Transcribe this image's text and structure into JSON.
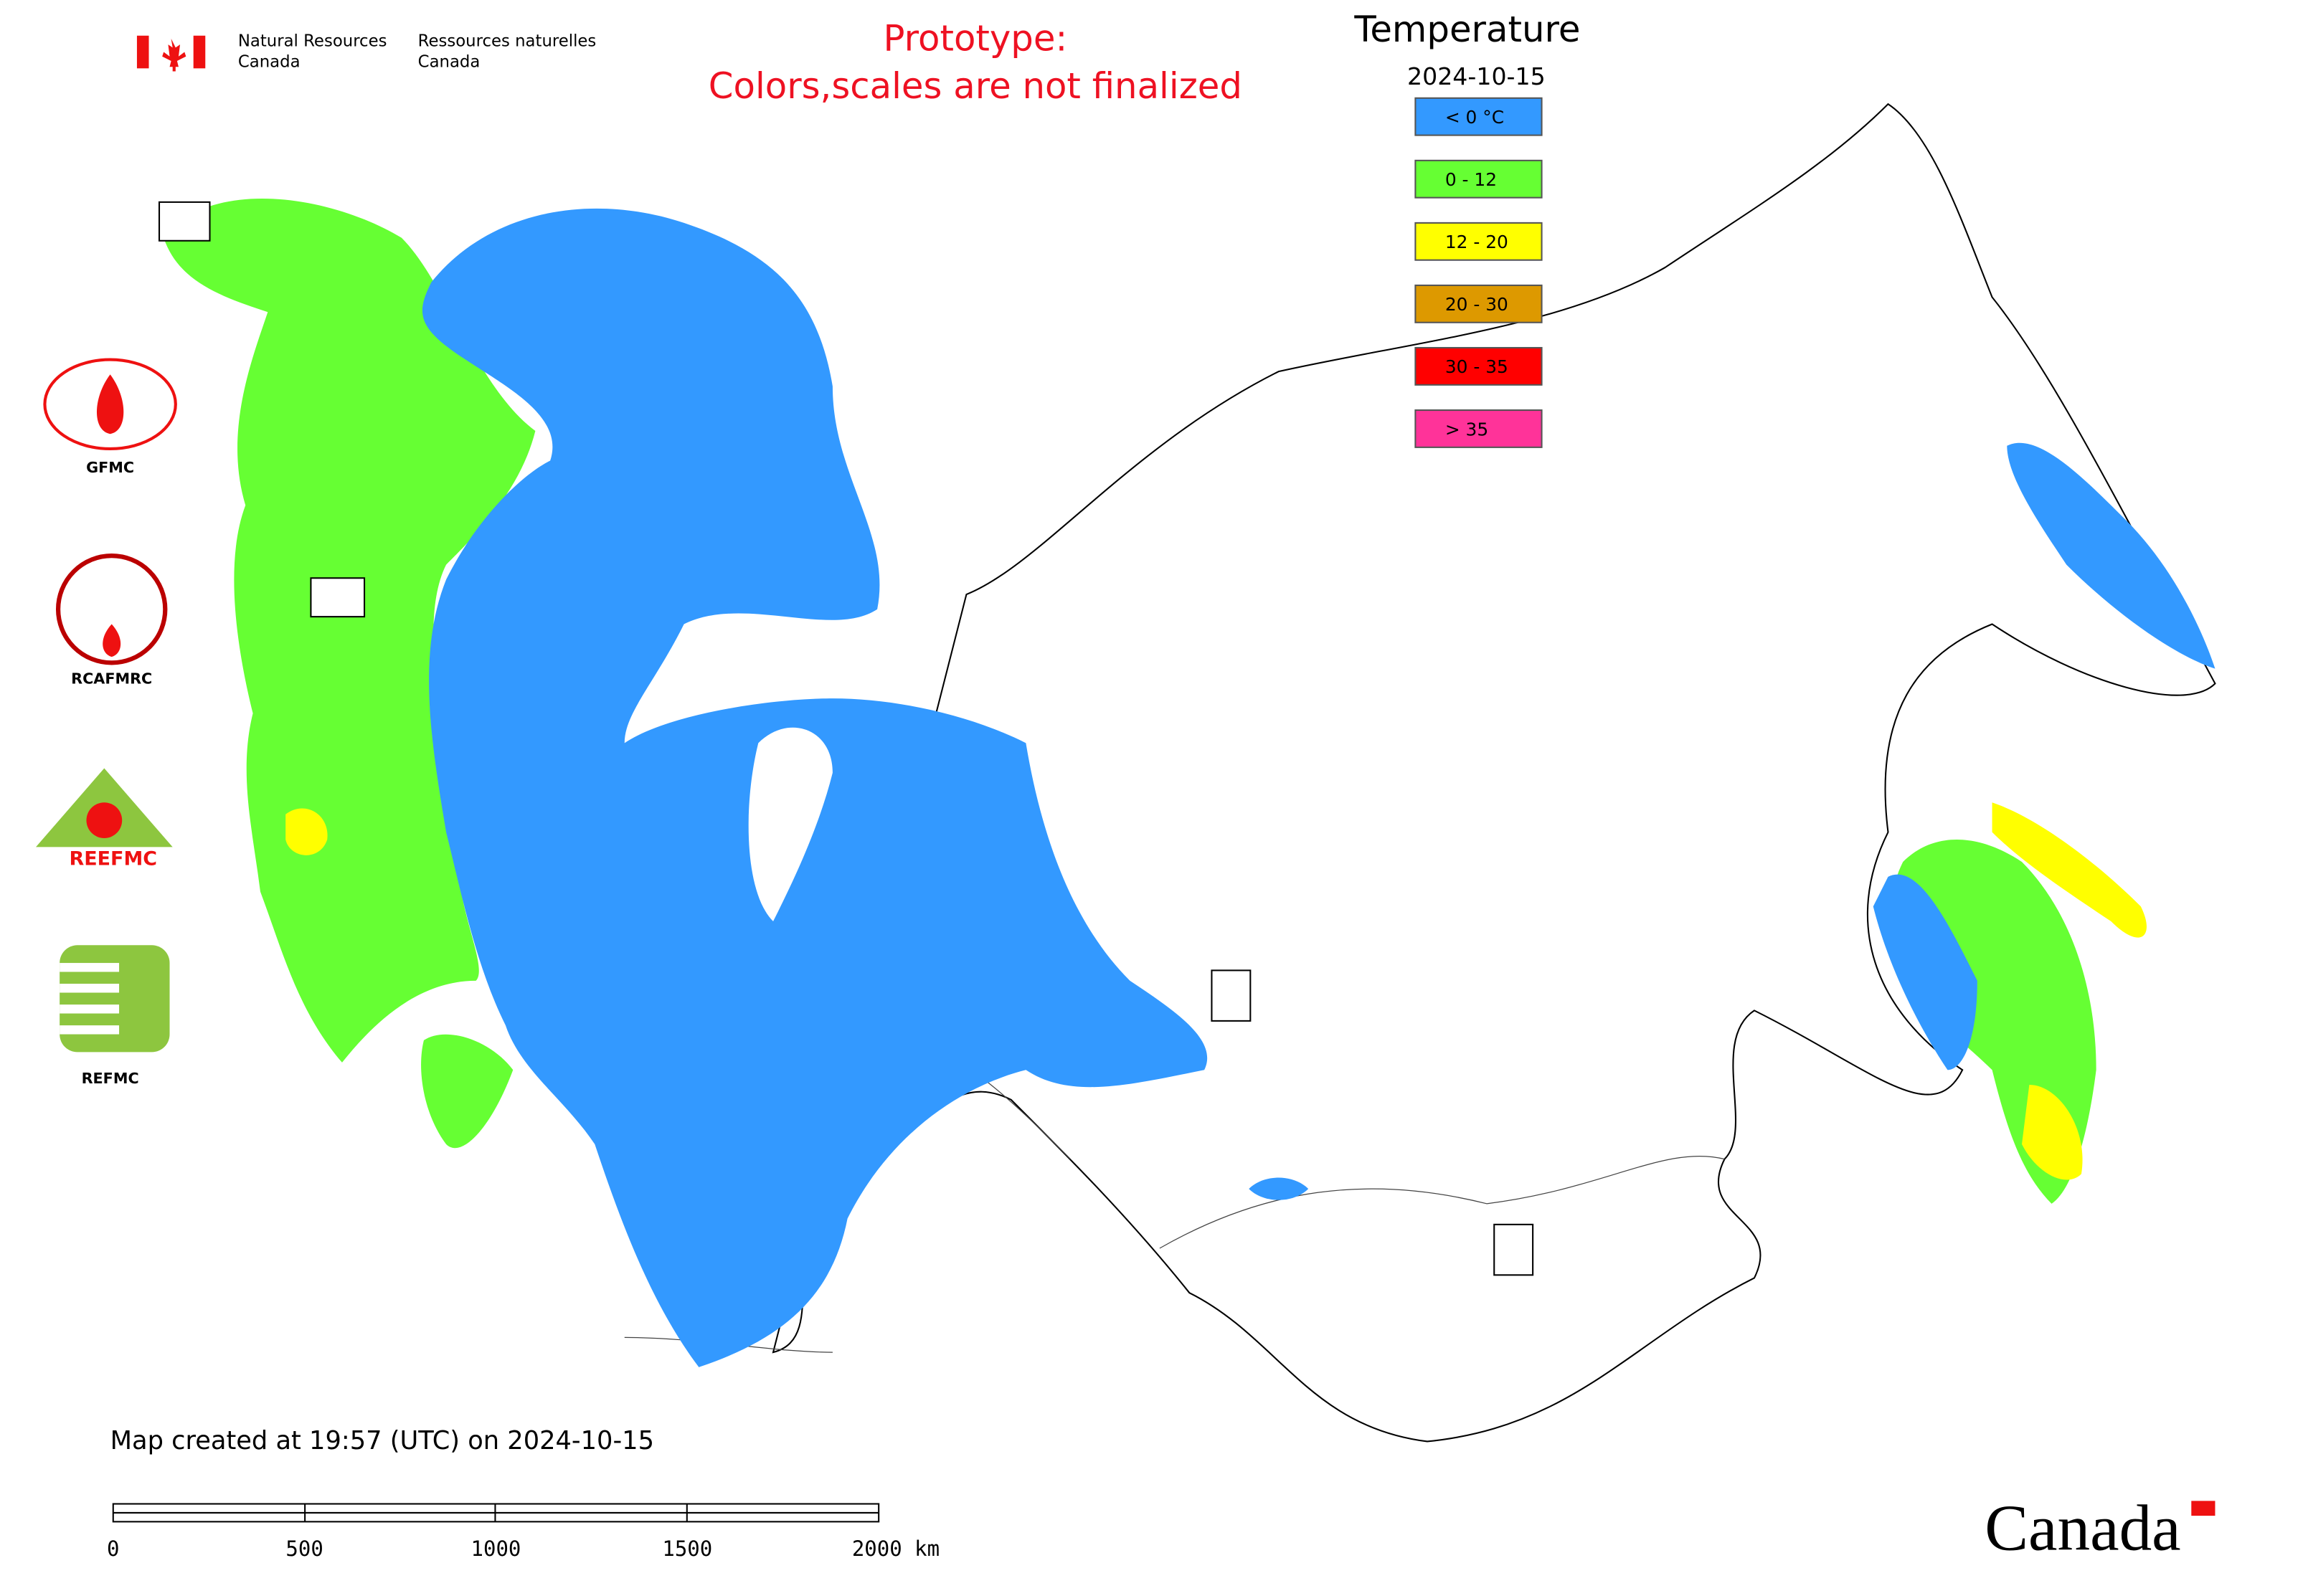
{
  "agency": {
    "en": [
      "Natural Resources",
      "Canada"
    ],
    "fr": [
      "Ressources naturelles",
      "Canada"
    ]
  },
  "notice": [
    "Prototype:",
    "Colors,scales are not finalized"
  ],
  "legend": {
    "title": "Temperature",
    "date": "2024-10-15",
    "items": [
      {
        "label": "< 0 °C",
        "color": "#3399ff"
      },
      {
        "label": "0 - 12",
        "color": "#66ff33"
      },
      {
        "label": "12 - 20",
        "color": "#ffff00"
      },
      {
        "label": "20 - 30",
        "color": "#dd9900"
      },
      {
        "label": "30 - 35",
        "color": "#ff0000"
      },
      {
        "label": "> 35",
        "color": "#ff3399"
      }
    ]
  },
  "logos": [
    "GFMC",
    "RCAFMRC",
    "REEFMC",
    "REFMC"
  ],
  "footer": {
    "created": "Map created at 19:57 (UTC) on 2024-10-15",
    "scale_labels": [
      "0",
      "500",
      "1000",
      "1500",
      "2000 km"
    ],
    "wordmark": "Canada"
  }
}
